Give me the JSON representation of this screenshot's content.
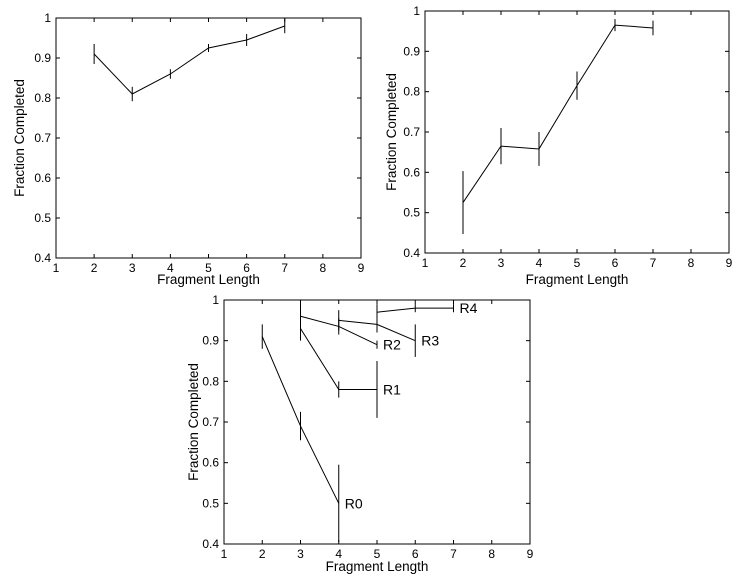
{
  "chart_data": [
    {
      "type": "line",
      "xlabel": "Fragment Length",
      "ylabel": "Fraction Completed",
      "xlim": [
        1,
        9
      ],
      "ylim": [
        0.4,
        1
      ],
      "xticks": [
        1,
        2,
        3,
        4,
        5,
        6,
        7,
        8,
        9
      ],
      "yticks": [
        0.4,
        0.5,
        0.6,
        0.7,
        0.8,
        0.9,
        1
      ],
      "ytick_labels": [
        "0.4",
        "0.5",
        "0.6",
        "0.7",
        "0.8",
        "0.9",
        "1"
      ],
      "series": [
        {
          "x": [
            2,
            3,
            4,
            5,
            6,
            7
          ],
          "y": [
            0.91,
            0.81,
            0.86,
            0.925,
            0.945,
            0.98
          ],
          "err": [
            0.025,
            0.018,
            0.012,
            0.01,
            0.015,
            0.018
          ]
        }
      ]
    },
    {
      "type": "line",
      "xlabel": "Fragment Length",
      "ylabel": "Fraction Completed",
      "xlim": [
        1,
        9
      ],
      "ylim": [
        0.4,
        1
      ],
      "xticks": [
        1,
        2,
        3,
        4,
        5,
        6,
        7,
        8,
        9
      ],
      "yticks": [
        0.4,
        0.5,
        0.6,
        0.7,
        0.8,
        0.9,
        1
      ],
      "ytick_labels": [
        "0.4",
        "0.5",
        "0.6",
        "0.7",
        "0.8",
        "0.9",
        "1"
      ],
      "series": [
        {
          "x": [
            2,
            3,
            4,
            5,
            6,
            7
          ],
          "y": [
            0.525,
            0.665,
            0.658,
            0.815,
            0.965,
            0.958
          ],
          "err": [
            0.078,
            0.045,
            0.042,
            0.035,
            0.015,
            0.018
          ]
        }
      ]
    },
    {
      "type": "line",
      "xlabel": "Fragment Length",
      "ylabel": "Fraction Completed",
      "xlim": [
        1,
        9
      ],
      "ylim": [
        0.4,
        1
      ],
      "xticks": [
        1,
        2,
        3,
        4,
        5,
        6,
        7,
        8,
        9
      ],
      "yticks": [
        0.4,
        0.5,
        0.6,
        0.7,
        0.8,
        0.9,
        1
      ],
      "ytick_labels": [
        "0.4",
        "0.5",
        "0.6",
        "0.7",
        "0.8",
        "0.9",
        "1"
      ],
      "series": [
        {
          "name": "R0",
          "x": [
            2,
            3,
            4
          ],
          "y": [
            0.91,
            0.69,
            0.5
          ],
          "err": [
            0.03,
            0.035,
            0.095
          ]
        },
        {
          "name": "R1",
          "x": [
            3,
            4,
            5
          ],
          "y": [
            0.93,
            0.78,
            0.78
          ],
          "err": [
            0.03,
            0.02,
            0.07
          ]
        },
        {
          "name": "R2",
          "x": [
            3,
            4,
            5
          ],
          "y": [
            0.96,
            0.935,
            0.89
          ],
          "err": [
            0.04,
            0.02,
            0.01
          ]
        },
        {
          "name": "R3",
          "x": [
            4,
            5,
            6
          ],
          "y": [
            0.95,
            0.94,
            0.9
          ],
          "err": [
            0.025,
            0.02,
            0.04
          ]
        },
        {
          "name": "R4",
          "x": [
            5,
            6,
            7
          ],
          "y": [
            0.97,
            0.98,
            0.98
          ],
          "err": [
            0.02,
            0.01,
            0.01
          ]
        }
      ]
    }
  ]
}
